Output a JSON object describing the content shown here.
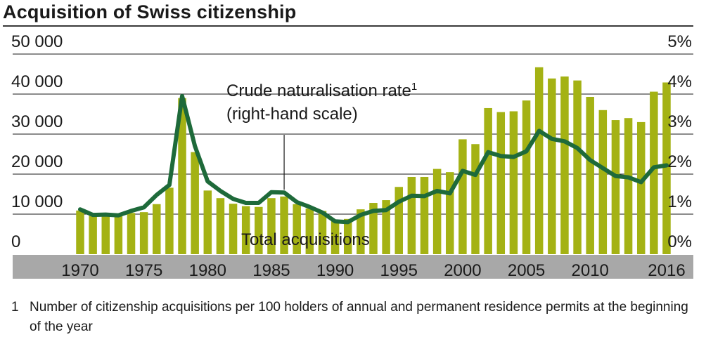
{
  "title": "Acquisition of Swiss citizenship",
  "footnote": {
    "number": "1",
    "text": "Number of citizenship acquisitions per 100 holders of annual and permanent residence permits at the beginning of the year"
  },
  "colors": {
    "bar": "#a4b214",
    "line": "#1e6a3a",
    "axis_band": "#a8a8a8",
    "grid": "#1a1a1a"
  },
  "chart_data": {
    "type": "bar",
    "x": [
      1970,
      1971,
      1972,
      1973,
      1974,
      1975,
      1976,
      1977,
      1978,
      1979,
      1980,
      1981,
      1982,
      1983,
      1984,
      1985,
      1986,
      1987,
      1988,
      1989,
      1990,
      1991,
      1992,
      1993,
      1994,
      1995,
      1996,
      1997,
      1998,
      1999,
      2000,
      2001,
      2002,
      2003,
      2004,
      2005,
      2006,
      2007,
      2008,
      2009,
      2010,
      2011,
      2012,
      2013,
      2014,
      2015,
      2016
    ],
    "x_tick_labels": [
      "1970",
      "1975",
      "1980",
      "1985",
      "1990",
      "1995",
      "2000",
      "2005",
      "2010",
      "2016"
    ],
    "y_left": {
      "ylim": [
        0,
        50000
      ],
      "tick_labels": [
        "0",
        "10 000",
        "20 000",
        "30 000",
        "40 000",
        "50 000"
      ]
    },
    "y_right": {
      "ylim": [
        0,
        5
      ],
      "tick_labels": [
        "0%",
        "1%",
        "2%",
        "3%",
        "4%",
        "5%"
      ]
    },
    "grid": true,
    "series": [
      {
        "name": "Total acquisitions",
        "kind": "bar",
        "axis": "left",
        "values": [
          10900,
          9600,
          9400,
          9800,
          10300,
          10500,
          12500,
          16600,
          39000,
          25500,
          15900,
          14000,
          12600,
          12000,
          11800,
          14000,
          14400,
          12500,
          11400,
          10800,
          8600,
          8800,
          11200,
          12800,
          13500,
          16800,
          19300,
          19300,
          21300,
          20500,
          28700,
          27500,
          36500,
          35500,
          35700,
          38400,
          46700,
          43900,
          44400,
          43400,
          39300,
          36000,
          33500,
          34000,
          33000,
          40600,
          42900
        ]
      },
      {
        "name": "Crude naturalisation rate",
        "name_superscript": "1",
        "name_note": "(right-hand scale)",
        "kind": "line",
        "axis": "right",
        "values": [
          1.12,
          0.98,
          0.99,
          0.97,
          1.08,
          1.17,
          1.48,
          1.73,
          3.95,
          2.7,
          1.82,
          1.58,
          1.38,
          1.28,
          1.28,
          1.55,
          1.54,
          1.3,
          1.18,
          1.04,
          0.82,
          0.8,
          0.98,
          1.08,
          1.1,
          1.31,
          1.46,
          1.45,
          1.58,
          1.52,
          2.08,
          1.98,
          2.55,
          2.45,
          2.43,
          2.57,
          3.08,
          2.88,
          2.82,
          2.65,
          2.35,
          2.15,
          1.95,
          1.92,
          1.8,
          2.17,
          2.22
        ]
      }
    ],
    "annotations": [
      {
        "text": "Crude naturalisation rate",
        "superscript": "1",
        "line2": "(right-hand scale)"
      },
      {
        "text": "Total acquisitions"
      }
    ]
  }
}
